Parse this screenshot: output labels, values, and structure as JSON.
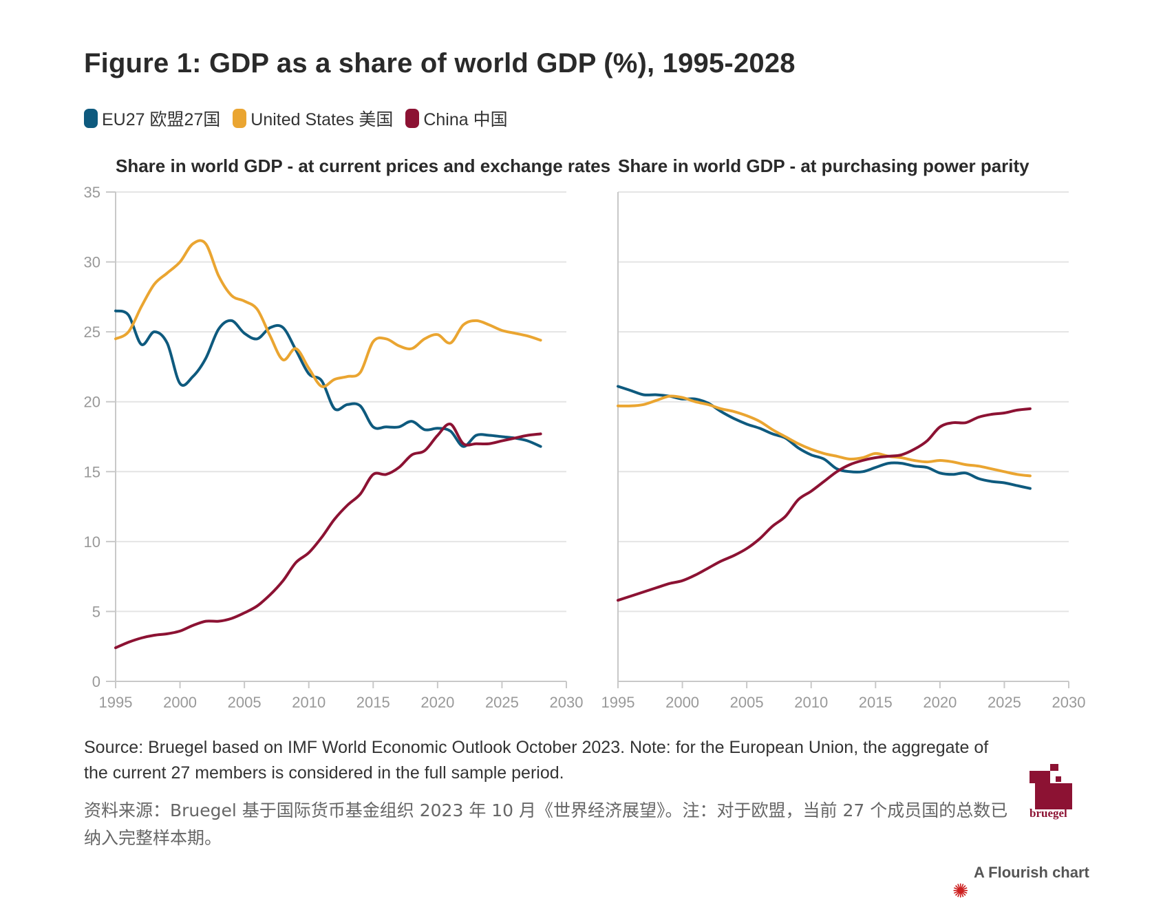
{
  "title": "Figure 1: GDP as a share of world GDP (%), 1995-2028",
  "legend": [
    {
      "label": "EU27 欧盟27国",
      "color": "#0e5a7e"
    },
    {
      "label": "United States 美国",
      "color": "#eaa531"
    },
    {
      "label": "China 中国",
      "color": "#8c1233"
    }
  ],
  "chart_data": [
    {
      "type": "line",
      "title": "Share in world GDP - at current prices and exchange rates",
      "x_ticks": [
        1995,
        2000,
        2005,
        2010,
        2015,
        2020,
        2025,
        2030
      ],
      "y_ticks": [
        0,
        5,
        10,
        15,
        20,
        25,
        30,
        35
      ],
      "xlim": [
        1995,
        2030
      ],
      "ylim": [
        0,
        35
      ],
      "grid": true,
      "series": [
        {
          "name": "EU27 欧盟27国",
          "color": "#0e5a7e",
          "x": [
            1995,
            1996,
            1997,
            1998,
            1999,
            2000,
            2001,
            2002,
            2003,
            2004,
            2005,
            2006,
            2007,
            2008,
            2009,
            2010,
            2011,
            2012,
            2013,
            2014,
            2015,
            2016,
            2017,
            2018,
            2019,
            2020,
            2021,
            2022,
            2023,
            2024,
            2025,
            2026,
            2027,
            2028
          ],
          "y": [
            26.5,
            26.2,
            24.1,
            25.0,
            24.2,
            21.3,
            21.8,
            23.1,
            25.2,
            25.8,
            24.9,
            24.5,
            25.3,
            25.3,
            23.7,
            22.0,
            21.5,
            19.5,
            19.8,
            19.7,
            18.2,
            18.2,
            18.2,
            18.6,
            18.0,
            18.1,
            17.9,
            16.8,
            17.6,
            17.6,
            17.5,
            17.4,
            17.2,
            16.8
          ]
        },
        {
          "name": "United States 美国",
          "color": "#eaa531",
          "x": [
            1995,
            1996,
            1997,
            1998,
            1999,
            2000,
            2001,
            2002,
            2003,
            2004,
            2005,
            2006,
            2007,
            2008,
            2009,
            2010,
            2011,
            2012,
            2013,
            2014,
            2015,
            2016,
            2017,
            2018,
            2019,
            2020,
            2021,
            2022,
            2023,
            2024,
            2025,
            2026,
            2027,
            2028
          ],
          "y": [
            24.5,
            25.0,
            26.8,
            28.4,
            29.2,
            30.0,
            31.3,
            31.3,
            29.0,
            27.6,
            27.2,
            26.6,
            24.7,
            23.0,
            23.8,
            22.4,
            21.1,
            21.6,
            21.8,
            22.1,
            24.3,
            24.5,
            24.0,
            23.8,
            24.5,
            24.8,
            24.2,
            25.5,
            25.8,
            25.5,
            25.1,
            24.9,
            24.7,
            24.4
          ]
        },
        {
          "name": "China 中国",
          "color": "#8c1233",
          "x": [
            1995,
            1996,
            1997,
            1998,
            1999,
            2000,
            2001,
            2002,
            2003,
            2004,
            2005,
            2006,
            2007,
            2008,
            2009,
            2010,
            2011,
            2012,
            2013,
            2014,
            2015,
            2016,
            2017,
            2018,
            2019,
            2020,
            2021,
            2022,
            2023,
            2024,
            2025,
            2026,
            2027,
            2028
          ],
          "y": [
            2.4,
            2.8,
            3.1,
            3.3,
            3.4,
            3.6,
            4.0,
            4.3,
            4.3,
            4.5,
            4.9,
            5.4,
            6.2,
            7.2,
            8.5,
            9.2,
            10.3,
            11.6,
            12.6,
            13.4,
            14.8,
            14.8,
            15.3,
            16.2,
            16.5,
            17.6,
            18.4,
            17.0,
            17.0,
            17.0,
            17.2,
            17.4,
            17.6,
            17.7
          ]
        }
      ]
    },
    {
      "type": "line",
      "title": "Share in world GDP - at purchasing power parity",
      "x_ticks": [
        1995,
        2000,
        2005,
        2010,
        2015,
        2020,
        2025,
        2030
      ],
      "y_ticks": [
        0,
        5,
        10,
        15,
        20,
        25,
        30,
        35
      ],
      "xlim": [
        1995,
        2030
      ],
      "ylim": [
        0,
        35
      ],
      "grid": true,
      "series": [
        {
          "name": "EU27 欧盟27国",
          "color": "#0e5a7e",
          "x": [
            1995,
            1996,
            1997,
            1998,
            1999,
            2000,
            2001,
            2002,
            2003,
            2004,
            2005,
            2006,
            2007,
            2008,
            2009,
            2010,
            2011,
            2012,
            2013,
            2014,
            2015,
            2016,
            2017,
            2018,
            2019,
            2020,
            2021,
            2022,
            2023,
            2024,
            2025,
            2026,
            2027
          ],
          "y": [
            21.1,
            20.8,
            20.5,
            20.5,
            20.4,
            20.2,
            20.2,
            19.9,
            19.3,
            18.8,
            18.4,
            18.1,
            17.7,
            17.4,
            16.7,
            16.2,
            15.9,
            15.2,
            15.0,
            15.0,
            15.3,
            15.6,
            15.6,
            15.4,
            15.3,
            14.9,
            14.8,
            14.9,
            14.5,
            14.3,
            14.2,
            14.0,
            13.8
          ]
        },
        {
          "name": "United States 美国",
          "color": "#eaa531",
          "x": [
            1995,
            1996,
            1997,
            1998,
            1999,
            2000,
            2001,
            2002,
            2003,
            2004,
            2005,
            2006,
            2007,
            2008,
            2009,
            2010,
            2011,
            2012,
            2013,
            2014,
            2015,
            2016,
            2017,
            2018,
            2019,
            2020,
            2021,
            2022,
            2023,
            2024,
            2025,
            2026,
            2027
          ],
          "y": [
            19.7,
            19.7,
            19.8,
            20.1,
            20.4,
            20.3,
            20.0,
            19.8,
            19.5,
            19.3,
            19.0,
            18.6,
            18.0,
            17.5,
            17.0,
            16.6,
            16.3,
            16.1,
            15.9,
            16.0,
            16.3,
            16.1,
            16.0,
            15.8,
            15.7,
            15.8,
            15.7,
            15.5,
            15.4,
            15.2,
            15.0,
            14.8,
            14.7
          ]
        },
        {
          "name": "China 中国",
          "color": "#8c1233",
          "x": [
            1995,
            1996,
            1997,
            1998,
            1999,
            2000,
            2001,
            2002,
            2003,
            2004,
            2005,
            2006,
            2007,
            2008,
            2009,
            2010,
            2011,
            2012,
            2013,
            2014,
            2015,
            2016,
            2017,
            2018,
            2019,
            2020,
            2021,
            2022,
            2023,
            2024,
            2025,
            2026,
            2027
          ],
          "y": [
            5.8,
            6.1,
            6.4,
            6.7,
            7.0,
            7.2,
            7.6,
            8.1,
            8.6,
            9.0,
            9.5,
            10.2,
            11.1,
            11.8,
            13.0,
            13.6,
            14.3,
            15.0,
            15.5,
            15.8,
            16.0,
            16.1,
            16.2,
            16.6,
            17.2,
            18.2,
            18.5,
            18.5,
            18.9,
            19.1,
            19.2,
            19.4,
            19.5
          ]
        }
      ]
    }
  ],
  "source_en": "Source: Bruegel based on IMF World Economic Outlook October 2023. Note: for the European Union, the aggregate of the current 27 members is considered in the full sample period.",
  "source_cn": "资料来源：Bruegel 基于国际货币基金组织 2023 年 10 月《世界经济展望》。注：对于欧盟，当前 27 个成员国的总数已纳入完整样本期。",
  "logo_text": "bruegel",
  "flourish_text": "A Flourish chart"
}
